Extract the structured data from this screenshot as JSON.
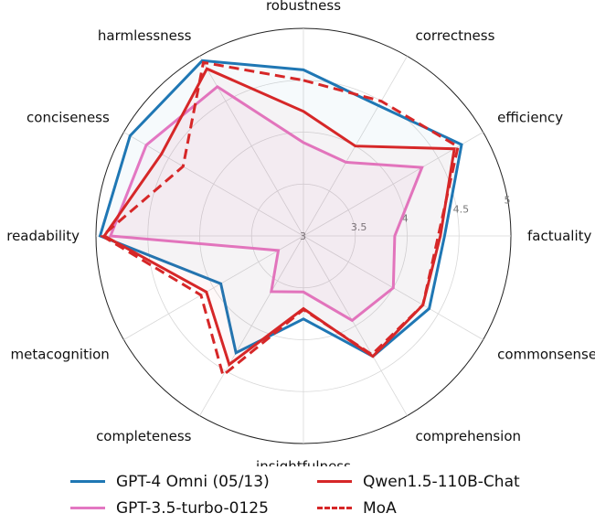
{
  "chart_data": {
    "type": "radar",
    "axes": [
      "robustness",
      "correctness",
      "efficiency",
      "factuality",
      "commonsense",
      "comprehension",
      "insightfulness",
      "completeness",
      "metacognition",
      "readability",
      "conciseness",
      "harmlessness"
    ],
    "rlim": [
      3,
      5
    ],
    "ticks": [
      3,
      3.5,
      4,
      4.5,
      5
    ],
    "tick_labels": [
      "3",
      "3.5",
      "4",
      "4.5",
      "5"
    ],
    "grid": true,
    "legend_position": "bottom",
    "series": [
      {
        "name": "GPT-4 Omni (05/13)",
        "color": "#1f77b4",
        "dash": "solid",
        "fill_opacity": 0.04,
        "values": [
          4.6,
          4.45,
          4.76,
          4.36,
          4.4,
          4.34,
          3.8,
          4.3,
          3.92,
          4.96,
          4.93,
          4.95
        ]
      },
      {
        "name": "GPT-3.5-turbo-0125",
        "color": "#e377c2",
        "dash": "solid",
        "fill_opacity": 0.06,
        "values": [
          3.9,
          3.82,
          4.32,
          3.88,
          4.0,
          3.94,
          3.54,
          3.62,
          3.28,
          4.86,
          4.75,
          4.66
        ]
      },
      {
        "name": "Qwen1.5-110B-Chat",
        "color": "#d62728",
        "dash": "solid",
        "fill_opacity": 0.03,
        "values": [
          4.2,
          4.0,
          4.68,
          4.32,
          4.33,
          4.34,
          3.7,
          4.43,
          4.08,
          4.92,
          4.58,
          4.86
        ]
      },
      {
        "name": "MoA",
        "color": "#d62728",
        "dash": "dashed",
        "fill_opacity": 0.0,
        "values": [
          4.5,
          4.5,
          4.72,
          4.3,
          4.33,
          4.32,
          3.71,
          4.55,
          4.14,
          4.94,
          4.34,
          4.93
        ]
      }
    ]
  },
  "legend": [
    {
      "label": "GPT-4 Omni (05/13)",
      "color": "#1f77b4",
      "dash": "solid"
    },
    {
      "label": "Qwen1.5-110B-Chat",
      "color": "#d62728",
      "dash": "solid"
    },
    {
      "label": "GPT-3.5-turbo-0125",
      "color": "#e377c2",
      "dash": "solid"
    },
    {
      "label": "MoA",
      "color": "#d62728",
      "dash": "dashed"
    }
  ]
}
